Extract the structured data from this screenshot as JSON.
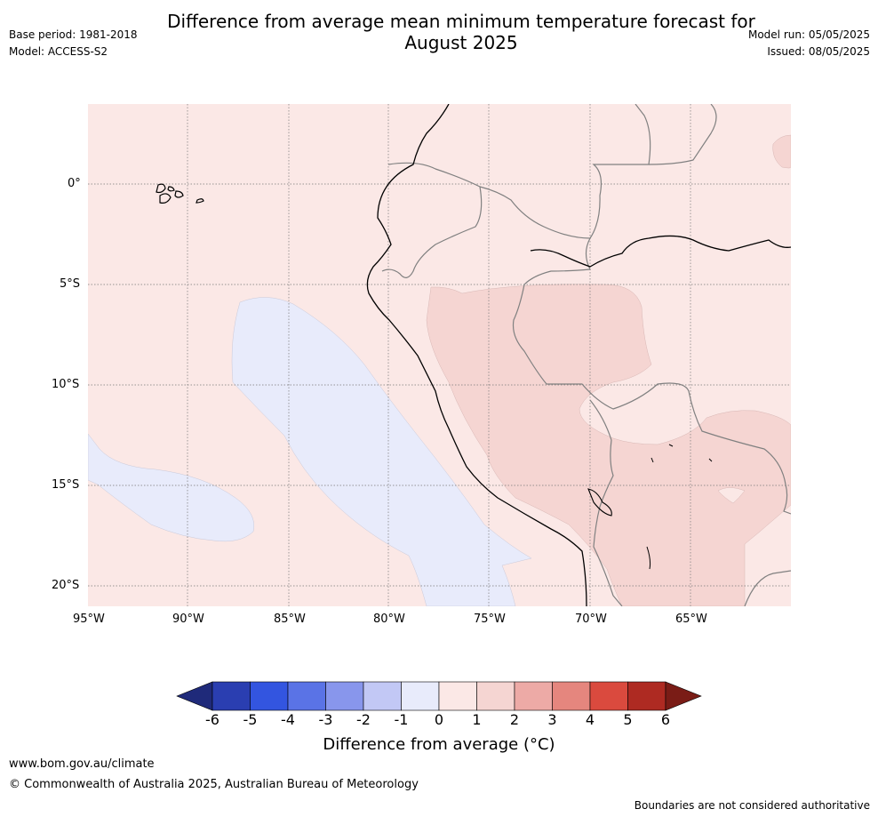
{
  "header": {
    "title_line1": "Difference from average mean minimum temperature forecast for",
    "title_line2": "August 2025",
    "base_period": "Base period: 1981-2018",
    "model": "Model: ACCESS-S2",
    "model_run": "Model run: 05/05/2025",
    "issued": "Issued: 08/05/2025"
  },
  "map": {
    "lat_labels": [
      "0°",
      "5°S",
      "10°S",
      "15°S",
      "20°S"
    ],
    "lon_labels": [
      "95°W",
      "90°W",
      "85°W",
      "80°W",
      "75°W",
      "70°W",
      "65°W"
    ],
    "category_colors": {
      "0_to_1": "#fbe8e6",
      "-1_to_0": "#e8ebfb",
      "1_to_2": "#f5d5d2",
      "ocean_base": "#fbe8e6"
    }
  },
  "legend": {
    "ticks": [
      "-6",
      "-5",
      "-4",
      "-3",
      "-2",
      "-1",
      "0",
      "1",
      "2",
      "3",
      "4",
      "5",
      "6"
    ],
    "colors": [
      "#1f2a7a",
      "#2a3eb1",
      "#3355e0",
      "#5a73e6",
      "#8896ec",
      "#c2c8f5",
      "#e8ebfb",
      "#fbe8e6",
      "#f5d5d2",
      "#edaaa6",
      "#e5867e",
      "#da4a3e",
      "#ae2a22",
      "#7a1c16"
    ],
    "label": "Difference from average (°C)"
  },
  "footer": {
    "website": "www.bom.gov.au/climate",
    "copyright": "© Commonwealth of Australia 2025, Australian Bureau of Meteorology",
    "disclaimer": "Boundaries are not considered authoritative"
  }
}
